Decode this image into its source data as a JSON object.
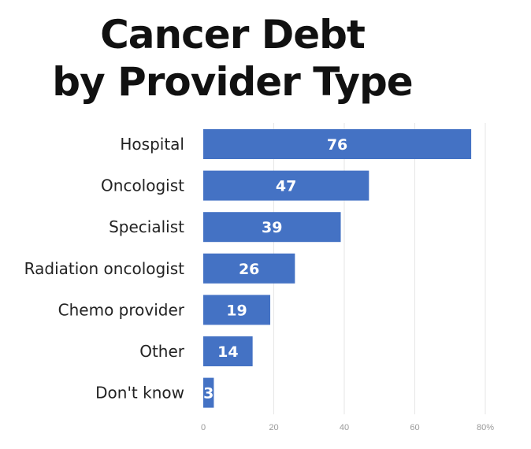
{
  "chart_data": {
    "type": "bar",
    "orientation": "horizontal",
    "title_lines": [
      "Cancer Debt",
      "by Provider Type"
    ],
    "categories": [
      "Hospital",
      "Oncologist",
      "Specialist",
      "Radiation oncologist",
      "Chemo provider",
      "Other",
      "Don't know"
    ],
    "values": [
      76,
      47,
      39,
      26,
      19,
      14,
      3
    ],
    "xlim": [
      0,
      80
    ],
    "x_ticks": [
      "0",
      "20",
      "40",
      "60",
      "80%"
    ],
    "grid": true,
    "bar_color": "#4472c4",
    "xlabel": "",
    "ylabel": ""
  }
}
